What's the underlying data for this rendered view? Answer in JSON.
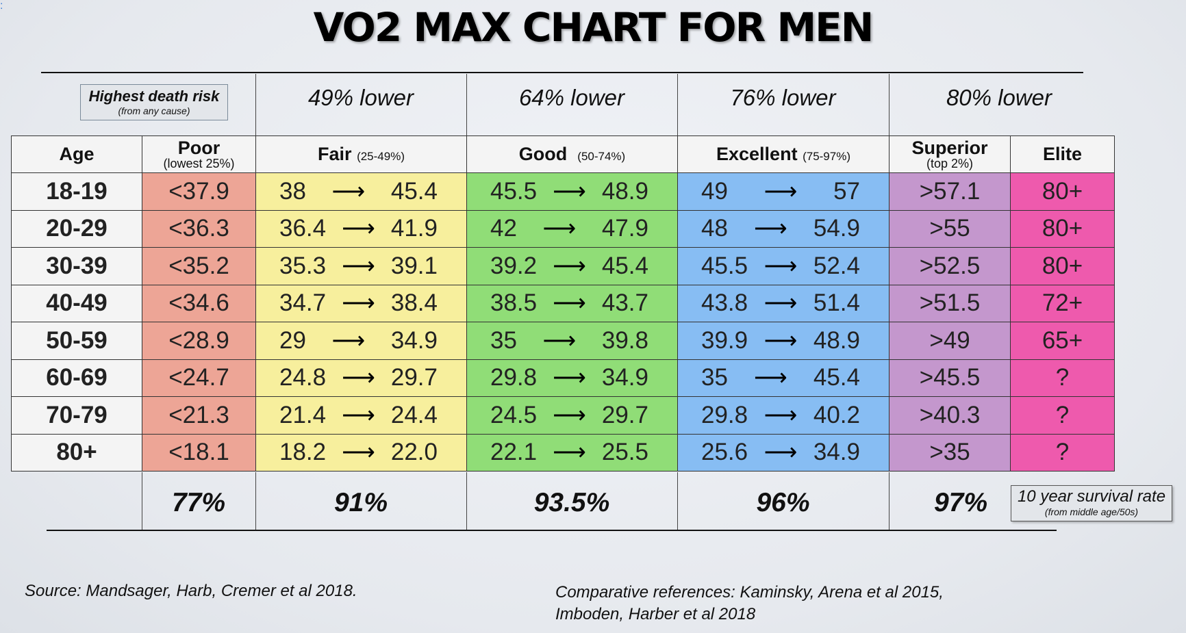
{
  "chart_data": {
    "type": "table",
    "title": "VO2 MAX CHART FOR MEN",
    "death_risk_label": "Highest death risk",
    "death_risk_sublabel": "(from any cause)",
    "risk_reductions": [
      "49% lower",
      "64% lower",
      "76% lower",
      "80% lower"
    ],
    "columns": {
      "age": "Age",
      "poor": {
        "label": "Poor",
        "range": "(lowest 25%)"
      },
      "fair": {
        "label": "Fair",
        "range": "(25-49%)"
      },
      "good": {
        "label": "Good",
        "range": "(50-74%)"
      },
      "excellent": {
        "label": "Excellent",
        "range": "(75-97%)"
      },
      "superior": {
        "label": "Superior",
        "range": "(top 2%)"
      },
      "elite": {
        "label": "Elite"
      }
    },
    "rows": [
      {
        "age": "18-19",
        "poor": "<37.9",
        "fair": [
          "38",
          "45.4"
        ],
        "good": [
          "45.5",
          "48.9"
        ],
        "excellent": [
          "49",
          "57"
        ],
        "superior": ">57.1",
        "elite": "80+"
      },
      {
        "age": "20-29",
        "poor": "<36.3",
        "fair": [
          "36.4",
          "41.9"
        ],
        "good": [
          "42",
          "47.9"
        ],
        "excellent": [
          "48",
          "54.9"
        ],
        "superior": ">55",
        "elite": "80+"
      },
      {
        "age": "30-39",
        "poor": "<35.2",
        "fair": [
          "35.3",
          "39.1"
        ],
        "good": [
          "39.2",
          "45.4"
        ],
        "excellent": [
          "45.5",
          "52.4"
        ],
        "superior": ">52.5",
        "elite": "80+"
      },
      {
        "age": "40-49",
        "poor": "<34.6",
        "fair": [
          "34.7",
          "38.4"
        ],
        "good": [
          "38.5",
          "43.7"
        ],
        "excellent": [
          "43.8",
          "51.4"
        ],
        "superior": ">51.5",
        "elite": "72+"
      },
      {
        "age": "50-59",
        "poor": "<28.9",
        "fair": [
          "29",
          "34.9"
        ],
        "good": [
          "35",
          "39.8"
        ],
        "excellent": [
          "39.9",
          "48.9"
        ],
        "superior": ">49",
        "elite": "65+"
      },
      {
        "age": "60-69",
        "poor": "<24.7",
        "fair": [
          "24.8",
          "29.7"
        ],
        "good": [
          "29.8",
          "34.9"
        ],
        "excellent": [
          "35",
          "45.4"
        ],
        "superior": ">45.5",
        "elite": "?"
      },
      {
        "age": "70-79",
        "poor": "<21.3",
        "fair": [
          "21.4",
          "24.4"
        ],
        "good": [
          "24.5",
          "29.7"
        ],
        "excellent": [
          "29.8",
          "40.2"
        ],
        "superior": ">40.3",
        "elite": "?"
      },
      {
        "age": "80+",
        "poor": "<18.1",
        "fair": [
          "18.2",
          "22.0"
        ],
        "good": [
          "22.1",
          "25.5"
        ],
        "excellent": [
          "25.6",
          "34.9"
        ],
        "superior": ">35",
        "elite": "?"
      }
    ],
    "survival_rates": [
      "77%",
      "91%",
      "93.5%",
      "96%",
      "97%"
    ],
    "survival_label": "10 year survival rate",
    "survival_sublabel": "(from middle age/50s)",
    "source": "Source:  Mandsager, Harb, Cremer et al 2018.",
    "references_line1": "Comparative references:  Kaminsky, Arena et al 2015,",
    "references_line2": "Imboden, Harber et al 2018",
    "colors": {
      "poor": "#eda596",
      "fair": "#f7ef9d",
      "good": "#90dd77",
      "excellent": "#87bdf3",
      "superior": "#c497cd",
      "elite": "#ee5aad"
    }
  }
}
